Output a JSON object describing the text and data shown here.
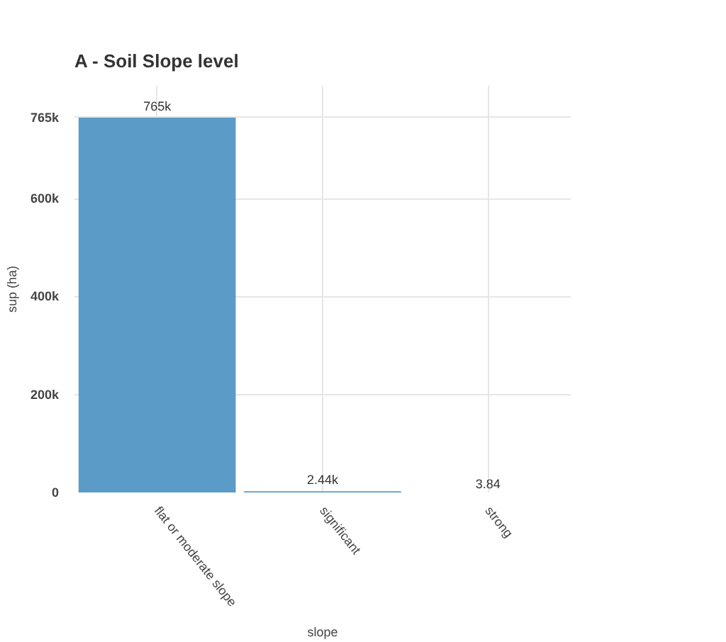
{
  "chart_data": {
    "type": "bar",
    "title": "A - Soil Slope level",
    "xlabel": "slope",
    "ylabel": "sup (ha)",
    "categories": [
      "flat or moderate slope",
      "significant",
      "strong"
    ],
    "values": [
      765000,
      2440,
      3.84
    ],
    "value_labels": [
      "765k",
      "2.44k",
      "3.84"
    ],
    "color": "#5b9bc8",
    "ylim": [
      0,
      830000
    ],
    "yticks": [
      0,
      {
        "value": 200000,
        "label": "200k"
      },
      {
        "value": 400000,
        "label": "400k"
      },
      {
        "value": 600000,
        "label": "600k"
      },
      {
        "value": 765000,
        "label": "765k"
      }
    ],
    "grid": true
  }
}
